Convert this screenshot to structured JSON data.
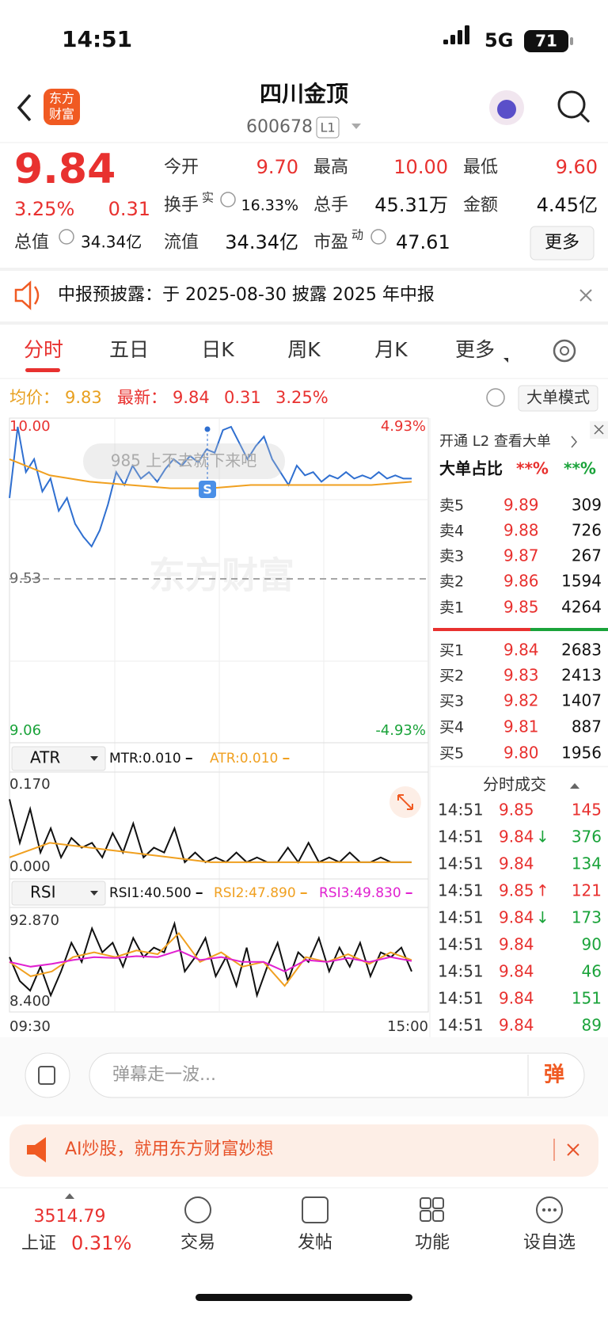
{
  "status": {
    "time": "14:51",
    "network": "5G",
    "battery": "71"
  },
  "header": {
    "logo": [
      "东方",
      "财富"
    ],
    "title": "四川金顶",
    "code": "600678",
    "level": "L1"
  },
  "quote": {
    "price": "9.84",
    "change_pct": "3.25%",
    "change": "0.31",
    "fields": [
      {
        "label": "今开",
        "value": "9.70"
      },
      {
        "label": "最高",
        "value": "10.00"
      },
      {
        "label": "最低",
        "value": "9.60"
      },
      {
        "label": "换手",
        "sup": "实",
        "value": "16.33%"
      },
      {
        "label": "总手",
        "value": "45.31万"
      },
      {
        "label": "金额",
        "value": "4.45亿"
      },
      {
        "label": "总值",
        "value": "34.34亿"
      },
      {
        "label": "流值",
        "value": "34.34亿"
      },
      {
        "label": "市盈",
        "sup": "动",
        "value": "47.61"
      }
    ],
    "more": "更多"
  },
  "notice": "中报预披露：于 2025-08-30 披露 2025 年中报",
  "tabs": [
    "分时",
    "五日",
    "日K",
    "周K",
    "月K",
    "更多"
  ],
  "info": {
    "avg": "9.83",
    "latest": "9.84",
    "change": "0.31",
    "change_pct": "3.25%",
    "mode": "大单模式"
  },
  "chart_data": [
    {
      "type": "line",
      "ylim": [
        9.06,
        10.0
      ],
      "yticks": [
        {
          "value": 10.0,
          "label": "10.00"
        },
        9.53,
        9.06
      ],
      "y2lim": [
        -4.93,
        4.93
      ],
      "y2ticks": [
        {
          "value": 4.93,
          "label": "4.93%"
        },
        {
          "value": -4.93,
          "label": "-4.93%"
        }
      ],
      "annotations": {
        "danmu": "985 上不去就下来吧",
        "watermark": "东方财富",
        "marker": "S"
      },
      "series": [
        {
          "name": "最新：",
          "color": "#2f6fd0",
          "values": [
            9.78,
            10.0,
            9.86,
            9.9,
            9.8,
            9.84,
            9.74,
            9.78,
            9.7,
            9.66,
            9.63,
            9.68,
            9.76,
            9.86,
            9.82,
            9.88,
            9.84,
            9.86,
            9.83,
            9.87,
            9.9,
            9.88,
            9.91,
            9.89,
            9.93,
            9.92,
            9.99,
            10.0,
            9.95,
            9.9,
            9.94,
            9.97,
            9.9,
            9.86,
            9.82,
            9.88,
            9.85,
            9.86,
            9.83,
            9.85,
            9.84,
            9.86,
            9.84,
            9.85,
            9.84,
            9.86,
            9.84,
            9.85,
            9.84,
            9.84
          ]
        },
        {
          "name": "均价：",
          "color": "#f0a020",
          "values": [
            9.9,
            9.85,
            9.83,
            9.82,
            9.81,
            9.81,
            9.82,
            9.82,
            9.82,
            9.82,
            9.83
          ]
        }
      ]
    },
    {
      "type": "line",
      "title": "ATR",
      "ylim": [
        0,
        0.17
      ],
      "yticks": [
        {
          "value": 0.17,
          "label": "0.170"
        },
        {
          "value": 0,
          "label": "0.000"
        }
      ],
      "series": [
        {
          "name": "MTR:0.010",
          "color": "#111111",
          "values": [
            0.14,
            0.05,
            0.12,
            0.03,
            0.08,
            0.02,
            0.06,
            0.04,
            0.05,
            0.02,
            0.07,
            0.03,
            0.09,
            0.02,
            0.04,
            0.03,
            0.08,
            0.01,
            0.03,
            0.01,
            0.02,
            0.01,
            0.03,
            0.01,
            0.02,
            0.01,
            0.01,
            0.04,
            0.01,
            0.05,
            0.01,
            0.02,
            0.01,
            0.03,
            0.01,
            0.01,
            0.02,
            0.01,
            0.01,
            0.01
          ]
        },
        {
          "name": "ATR:0.010",
          "color": "#f0a020",
          "values": [
            0.02,
            0.05,
            0.04,
            0.03,
            0.02,
            0.01,
            0.01,
            0.01,
            0.01,
            0.01,
            0.01
          ]
        }
      ]
    },
    {
      "type": "line",
      "title": "RSI",
      "ylim": [
        8.4,
        92.87
      ],
      "yticks": [
        {
          "value": 92.87,
          "label": "92.870"
        },
        {
          "value": 8.4,
          "label": "8.400"
        }
      ],
      "x_labels": [
        "09:30",
        "15:00"
      ],
      "series": [
        {
          "name": "RSI1:40.500",
          "color": "#111111",
          "values": [
            55,
            30,
            20,
            45,
            15,
            40,
            70,
            50,
            85,
            60,
            70,
            45,
            75,
            55,
            65,
            60,
            90,
            40,
            55,
            75,
            35,
            55,
            25,
            65,
            15,
            45,
            70,
            30,
            60,
            50,
            75,
            40,
            65,
            45,
            70,
            35,
            60,
            55,
            65,
            40
          ]
        },
        {
          "name": "RSI2:47.890",
          "color": "#f0a020",
          "values": [
            50,
            35,
            40,
            55,
            60,
            55,
            62,
            58,
            80,
            50,
            60,
            45,
            50,
            25,
            55,
            50,
            58,
            48,
            60,
            52
          ]
        },
        {
          "name": "RSI3:49.830",
          "color": "#e020d0",
          "values": [
            50,
            45,
            48,
            52,
            55,
            54,
            56,
            55,
            62,
            52,
            55,
            50,
            50,
            40,
            52,
            50,
            54,
            50,
            55,
            51
          ]
        }
      ]
    }
  ],
  "order_book": {
    "promo": "开通 L2 查看大单",
    "ratio_label": "大单占比",
    "ratio_buy": "**%",
    "ratio_sell": "**%",
    "asks": [
      {
        "label": "卖5",
        "price": "9.89",
        "volume": "309"
      },
      {
        "label": "卖4",
        "price": "9.88",
        "volume": "726"
      },
      {
        "label": "卖3",
        "price": "9.87",
        "volume": "267"
      },
      {
        "label": "卖2",
        "price": "9.86",
        "volume": "1594"
      },
      {
        "label": "卖1",
        "price": "9.85",
        "volume": "4264"
      }
    ],
    "bids": [
      {
        "label": "买1",
        "price": "9.84",
        "volume": "2683"
      },
      {
        "label": "买2",
        "price": "9.83",
        "volume": "2413"
      },
      {
        "label": "买3",
        "price": "9.82",
        "volume": "1407"
      },
      {
        "label": "买4",
        "price": "9.81",
        "volume": "887"
      },
      {
        "label": "买5",
        "price": "9.80",
        "volume": "1956"
      }
    ]
  },
  "trades": {
    "title": "分时成交",
    "rows": [
      {
        "time": "14:51",
        "price": "9.85",
        "volume": "145",
        "color": "#e8312f"
      },
      {
        "time": "14:51",
        "price": "9.84",
        "arrow": "↓",
        "volume": "376",
        "color": "#1aa33a"
      },
      {
        "time": "14:51",
        "price": "9.84",
        "volume": "134",
        "color": "#1aa33a"
      },
      {
        "time": "14:51",
        "price": "9.85",
        "arrow": "↑",
        "volume": "121",
        "color": "#e8312f"
      },
      {
        "time": "14:51",
        "price": "9.84",
        "arrow": "↓",
        "volume": "173",
        "color": "#1aa33a"
      },
      {
        "time": "14:51",
        "price": "9.84",
        "volume": "90",
        "color": "#1aa33a"
      },
      {
        "time": "14:51",
        "price": "9.84",
        "volume": "46",
        "color": "#1aa33a"
      },
      {
        "time": "14:51",
        "price": "9.84",
        "volume": "151",
        "color": "#1aa33a"
      },
      {
        "time": "14:51",
        "price": "9.84",
        "volume": "89",
        "color": "#1aa33a"
      }
    ]
  },
  "comment": {
    "placeholder": "弹幕走一波...",
    "button": "弹"
  },
  "ad": "AI炒股，就用东方财富妙想",
  "nav": {
    "index_value": "3514.79",
    "index_name": "上证",
    "index_change": "0.31%",
    "items": [
      "交易",
      "发帖",
      "功能",
      "设自选"
    ]
  }
}
